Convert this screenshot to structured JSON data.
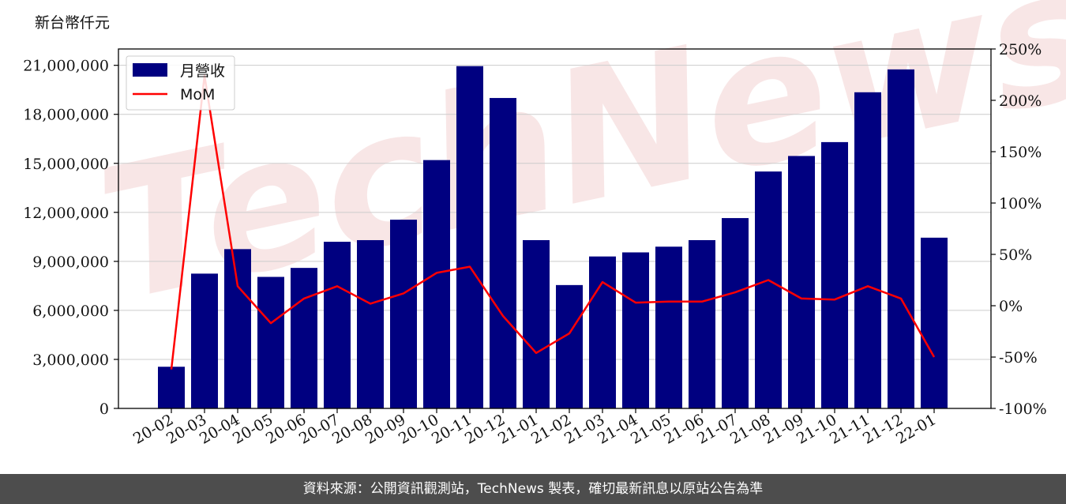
{
  "unit_label": "新台幣仟元",
  "footer": "資料來源：公開資訊觀測站，TechNews 製表，確切最新訊息以原站公告為準",
  "watermark": "TechNews",
  "colors": {
    "bar": "#000080",
    "line": "#ff0000",
    "grid": "#cccccc",
    "footer_bg": "#4d4d4d",
    "watermark": "#f3d6d6"
  },
  "chart_data": {
    "type": "bar",
    "categories": [
      "20-02",
      "20-03",
      "20-04",
      "20-05",
      "20-06",
      "20-07",
      "20-08",
      "20-09",
      "20-10",
      "20-11",
      "20-12",
      "21-01",
      "21-02",
      "21-03",
      "21-04",
      "21-05",
      "21-06",
      "21-07",
      "21-08",
      "21-09",
      "21-10",
      "21-11",
      "21-12",
      "22-01"
    ],
    "series": [
      {
        "name": "月營收",
        "type": "bar",
        "axis": "left",
        "values": [
          2550000,
          8250000,
          9750000,
          8050000,
          8600000,
          10200000,
          10300000,
          11550000,
          15200000,
          20950000,
          19000000,
          10300000,
          7550000,
          9300000,
          9550000,
          9900000,
          10300000,
          11650000,
          14500000,
          15450000,
          16300000,
          19350000,
          20750000,
          10450000
        ]
      },
      {
        "name": "MoM",
        "type": "line",
        "axis": "right",
        "unit": "%",
        "values": [
          -62,
          224,
          19,
          -17,
          7,
          19,
          2,
          12,
          32,
          38,
          -10,
          -46,
          -27,
          23,
          3,
          4,
          4,
          13,
          25,
          7,
          6,
          19,
          7,
          -50
        ]
      }
    ],
    "left_axis": {
      "ylim": [
        0,
        22000000
      ],
      "ticks": [
        0,
        3000000,
        6000000,
        9000000,
        12000000,
        15000000,
        18000000,
        21000000
      ],
      "tick_labels": [
        "0",
        "3,000,000",
        "6,000,000",
        "9,000,000",
        "12,000,000",
        "15,000,000",
        "18,000,000",
        "21,000,000"
      ]
    },
    "right_axis": {
      "ylim": [
        -100,
        250
      ],
      "ticks": [
        -100,
        -50,
        0,
        50,
        100,
        150,
        200,
        250
      ],
      "tick_labels": [
        "-100%",
        "-50%",
        "0%",
        "50%",
        "100%",
        "150%",
        "200%",
        "250%"
      ]
    },
    "grid": true,
    "legend": "top-left"
  }
}
